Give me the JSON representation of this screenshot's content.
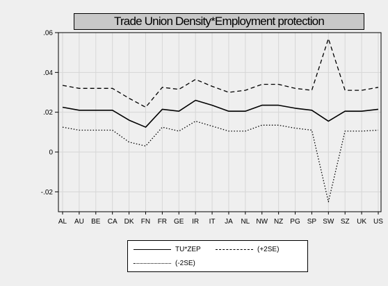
{
  "chart_data": {
    "type": "line",
    "title": "Trade Union Density*Employment protection",
    "categories": [
      "AL",
      "AU",
      "BE",
      "CA",
      "DK",
      "FN",
      "FR",
      "GE",
      "IR",
      "IT",
      "JA",
      "NL",
      "NW",
      "NZ",
      "PG",
      "SP",
      "SW",
      "SZ",
      "UK",
      "US"
    ],
    "x_tick_labels": [
      "AL",
      "AU",
      "BE",
      "CA",
      "DK",
      "FN",
      "FR",
      "GE",
      "IR",
      "IT",
      "JA",
      "NL",
      "NW",
      "NZ",
      "PG",
      "SP",
      "SW",
      "SZ",
      "UK",
      "US"
    ],
    "ylim": [
      -0.03,
      0.06
    ],
    "yticks": [
      -0.02,
      0,
      0.02,
      0.04,
      0.06
    ],
    "ytick_labels": [
      "-.02",
      "0",
      ".02",
      ".04",
      ".06"
    ],
    "grid": true,
    "legend_position": "bottom",
    "series": [
      {
        "name": "TU*ZEP",
        "style": "solid",
        "color": "#000000",
        "values": [
          0.0225,
          0.021,
          0.021,
          0.021,
          0.016,
          0.0125,
          0.0215,
          0.0205,
          0.026,
          0.0235,
          0.0205,
          0.0205,
          0.0235,
          0.0235,
          0.022,
          0.021,
          0.0155,
          0.0205,
          0.0205,
          0.0215
        ]
      },
      {
        "name": "(+2SE)",
        "style": "dashed",
        "color": "#000000",
        "values": [
          0.0335,
          0.032,
          0.032,
          0.032,
          0.027,
          0.0225,
          0.0325,
          0.0315,
          0.0365,
          0.033,
          0.03,
          0.031,
          0.034,
          0.034,
          0.032,
          0.031,
          0.057,
          0.031,
          0.031,
          0.0325
        ]
      },
      {
        "name": "(-2SE)",
        "style": "dotted",
        "color": "#000000",
        "values": [
          0.0125,
          0.011,
          0.011,
          0.011,
          0.005,
          0.003,
          0.0125,
          0.0105,
          0.0155,
          0.013,
          0.0105,
          0.0105,
          0.0135,
          0.0135,
          0.012,
          0.011,
          -0.025,
          0.0105,
          0.0105,
          0.011
        ]
      }
    ]
  }
}
